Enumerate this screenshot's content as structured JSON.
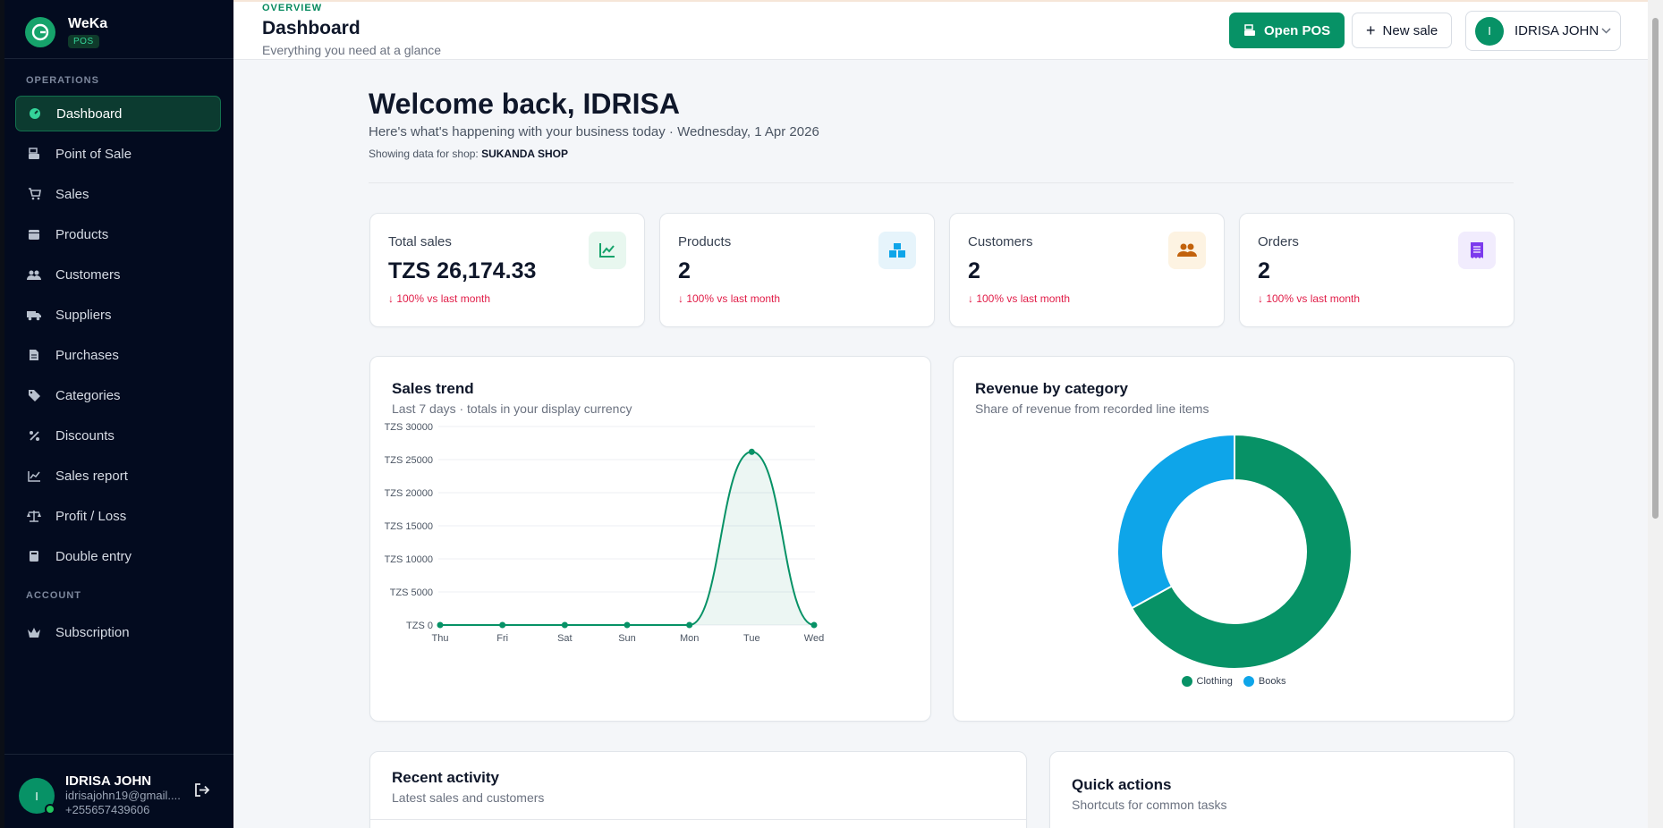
{
  "app": {
    "name": "WeKa",
    "badge": "POS"
  },
  "sidebar": {
    "sections": {
      "operations": "OPERATIONS",
      "account": "ACCOUNT"
    },
    "items": [
      {
        "label": "Dashboard",
        "icon": "dashboard-icon"
      },
      {
        "label": "Point of Sale",
        "icon": "register-icon"
      },
      {
        "label": "Sales",
        "icon": "cart-icon"
      },
      {
        "label": "Products",
        "icon": "box-icon"
      },
      {
        "label": "Customers",
        "icon": "users-icon"
      },
      {
        "label": "Suppliers",
        "icon": "truck-icon"
      },
      {
        "label": "Purchases",
        "icon": "file-icon"
      },
      {
        "label": "Categories",
        "icon": "tag-icon"
      },
      {
        "label": "Discounts",
        "icon": "percent-icon"
      },
      {
        "label": "Sales report",
        "icon": "chart-line-icon"
      },
      {
        "label": "Profit / Loss",
        "icon": "scale-icon"
      },
      {
        "label": "Double entry",
        "icon": "book-icon"
      }
    ],
    "account_items": [
      {
        "label": "Subscription",
        "icon": "crown-icon"
      }
    ],
    "user": {
      "initial": "I",
      "name": "IDRISA JOHN",
      "email": "idrisajohn19@gmail....",
      "phone": "+255657439606"
    }
  },
  "header": {
    "overline": "OVERVIEW",
    "title": "Dashboard",
    "subtitle": "Everything you need at a glance",
    "open_pos": "Open POS",
    "new_sale": "New sale",
    "user_initial": "I",
    "user_name": "IDRISA JOHN"
  },
  "welcome": {
    "title": "Welcome back, IDRISA",
    "subtitle": "Here's what's happening with your business today · Wednesday, 1 Apr 2026",
    "shop_prefix": "Showing data for shop:",
    "shop_name": "SUKANDA SHOP"
  },
  "stats": [
    {
      "label": "Total sales",
      "value": "TZS 26,174.33",
      "delta": "↓ 100% vs last month",
      "icon": "trend-icon",
      "color": "#16a36b",
      "bg": "#e8f7ef"
    },
    {
      "label": "Products",
      "value": "2",
      "delta": "↓ 100% vs last month",
      "icon": "boxes-icon",
      "color": "#0ea5e9",
      "bg": "#e6f4fb"
    },
    {
      "label": "Customers",
      "value": "2",
      "delta": "↓ 100% vs last month",
      "icon": "people-icon",
      "color": "#d97706",
      "bg": "#fdf3e2"
    },
    {
      "label": "Orders",
      "value": "2",
      "delta": "↓ 100% vs last month",
      "icon": "receipt-icon",
      "color": "#7c3aed",
      "bg": "#f1ecfd"
    }
  ],
  "sales_trend": {
    "title": "Sales trend",
    "subtitle": "Last 7 days · totals in your display currency"
  },
  "revenue": {
    "title": "Revenue by category",
    "subtitle": "Share of revenue from recorded line items"
  },
  "recent": {
    "title": "Recent activity",
    "subtitle": "Latest sales and customers"
  },
  "quick": {
    "title": "Quick actions",
    "subtitle": "Shortcuts for common tasks"
  },
  "chart_data": [
    {
      "type": "area",
      "categories": [
        "Thu",
        "Fri",
        "Sat",
        "Sun",
        "Mon",
        "Tue",
        "Wed"
      ],
      "values": [
        0,
        0,
        0,
        0,
        0,
        26174.33,
        0
      ],
      "ylim": [
        0,
        30000
      ],
      "yticks": [
        "TZS 0",
        "TZS 5000",
        "TZS 10000",
        "TZS 15000",
        "TZS 20000",
        "TZS 25000",
        "TZS 30000"
      ],
      "ytick_values": [
        0,
        5000,
        10000,
        15000,
        20000,
        25000,
        30000
      ],
      "grid": true,
      "color": "#079266"
    },
    {
      "type": "pie",
      "donut": true,
      "labels": [
        "Clothing",
        "Books"
      ],
      "values": [
        67,
        33
      ],
      "colors": [
        "#079266",
        "#0ea5e9"
      ],
      "legend": "bottom"
    }
  ]
}
